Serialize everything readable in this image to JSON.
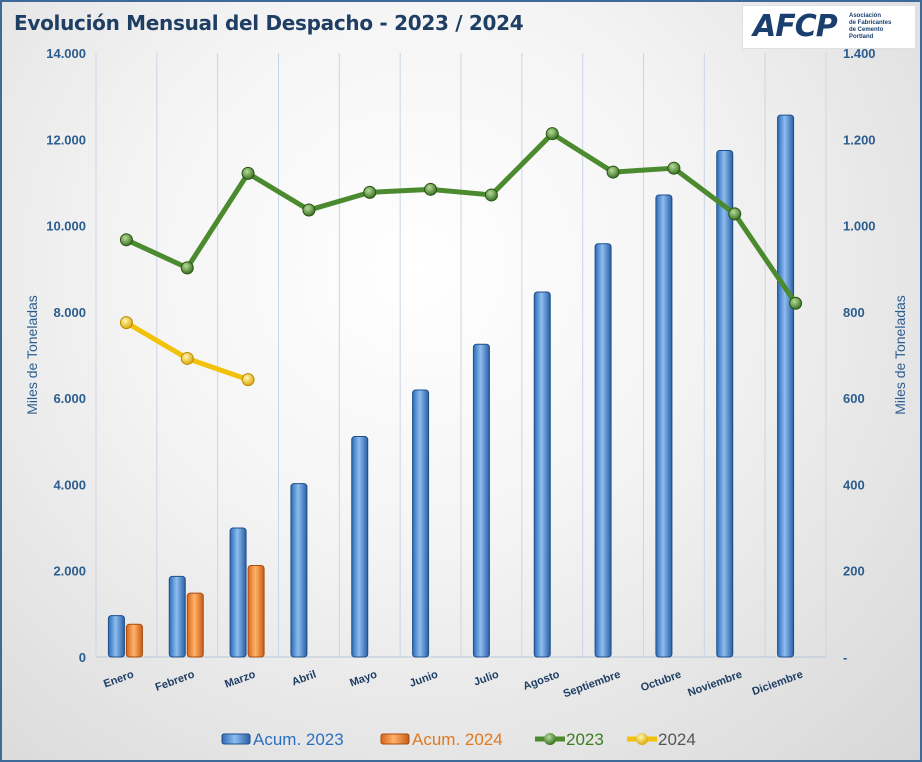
{
  "title": "Evolución Mensual del Despacho - 2023 / 2024",
  "logo": {
    "text": "AFCP",
    "subtitle": [
      "Asociación",
      "de Fabricantes",
      "de Cemento",
      "Portland"
    ]
  },
  "colors": {
    "acum2023": "#4f8ed8",
    "acum2024": "#f08a2c",
    "line2023": "#4b8a2e",
    "line2024": "#f2c20a",
    "axis_text": "#2c5d8f",
    "title": "#1f3e63"
  },
  "chart_data": {
    "type": "bar",
    "title": "Evolución Mensual del Despacho - 2023 / 2024",
    "categories": [
      "Enero",
      "Febrero",
      "Marzo",
      "Abril",
      "Mayo",
      "Junio",
      "Julio",
      "Agosto",
      "Septiembre",
      "Octubre",
      "Noviembre",
      "Diciembre"
    ],
    "ylabel_left": "Miles de Toneladas",
    "ylabel_right": "Miles de Toneladas",
    "ylim_left": [
      0,
      14000
    ],
    "ylim_right": [
      0,
      1400
    ],
    "yticks_left": [
      "0",
      "2.000",
      "4.000",
      "6.000",
      "8.000",
      "10.000",
      "12.000",
      "14.000"
    ],
    "yticks_right": [
      "-",
      "200",
      "400",
      "600",
      "800",
      "1.000",
      "1.200",
      "1.400"
    ],
    "grid": "vertical",
    "legend_position": "bottom",
    "series": [
      {
        "name": "Acum. 2023",
        "type": "bar",
        "axis": "left",
        "values": [
          960,
          1870,
          2990,
          4020,
          5110,
          6190,
          7250,
          8460,
          9580,
          10710,
          11740,
          12560
        ]
      },
      {
        "name": "Acum. 2024",
        "type": "bar",
        "axis": "left",
        "values": [
          760,
          1480,
          2120,
          null,
          null,
          null,
          null,
          null,
          null,
          null,
          null,
          null
        ]
      },
      {
        "name": "2023",
        "type": "line",
        "axis": "right",
        "values": [
          967,
          902,
          1121,
          1036,
          1077,
          1084,
          1071,
          1213,
          1124,
          1133,
          1027,
          820
        ]
      },
      {
        "name": "2024",
        "type": "line",
        "axis": "right",
        "values": [
          775,
          692,
          643,
          null,
          null,
          null,
          null,
          null,
          null,
          null,
          null,
          null
        ]
      }
    ]
  }
}
